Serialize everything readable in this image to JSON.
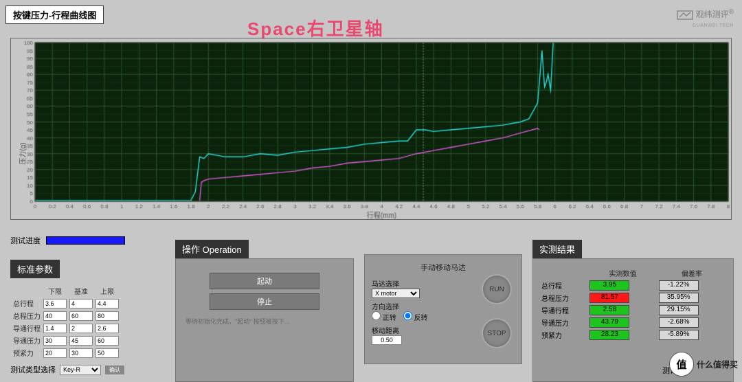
{
  "title_box": "按键压力-行程曲线图",
  "overlay_title": "Space右卫星轴",
  "logo": {
    "main": "观纬测评",
    "sub": "GUANWEI TECH"
  },
  "chart": {
    "type": "line",
    "ylabel": "压力(g)",
    "xlabel": "行程(mm)",
    "xlim": [
      0,
      8.0
    ],
    "xtick_step": 0.2,
    "ylim": [
      0,
      100
    ],
    "ytick_step": 5,
    "background_color": "#0b220b",
    "grid_color_major": "#2c5a2c",
    "grid_color_minor": "#153515",
    "axis_label_fontsize": 10,
    "tick_fontsize": 8,
    "series": [
      {
        "name": "press",
        "color": "#2be0e0",
        "line_width": 1.4,
        "points": [
          [
            0,
            0.5
          ],
          [
            0.2,
            0.5
          ],
          [
            0.4,
            0.5
          ],
          [
            0.6,
            0.5
          ],
          [
            0.8,
            0.5
          ],
          [
            1.0,
            0.5
          ],
          [
            1.2,
            0.5
          ],
          [
            1.4,
            0.5
          ],
          [
            1.6,
            0.5
          ],
          [
            1.8,
            0.6
          ],
          [
            1.85,
            6
          ],
          [
            1.9,
            28
          ],
          [
            1.95,
            27
          ],
          [
            2.0,
            30
          ],
          [
            2.2,
            28
          ],
          [
            2.4,
            28
          ],
          [
            2.6,
            30
          ],
          [
            2.8,
            29
          ],
          [
            3.0,
            31
          ],
          [
            3.2,
            32
          ],
          [
            3.4,
            33
          ],
          [
            3.6,
            34
          ],
          [
            3.8,
            36
          ],
          [
            4.0,
            37
          ],
          [
            4.2,
            38
          ],
          [
            4.3,
            38
          ],
          [
            4.4,
            45
          ],
          [
            4.5,
            45
          ],
          [
            4.6,
            44
          ],
          [
            4.8,
            45
          ],
          [
            5.0,
            46
          ],
          [
            5.2,
            47
          ],
          [
            5.4,
            48
          ],
          [
            5.5,
            49
          ],
          [
            5.6,
            50
          ],
          [
            5.7,
            52
          ],
          [
            5.8,
            62
          ],
          [
            5.82,
            75
          ],
          [
            5.85,
            95
          ],
          [
            5.88,
            72
          ],
          [
            5.9,
            75
          ],
          [
            5.92,
            80
          ],
          [
            5.95,
            70
          ],
          [
            5.98,
            100
          ]
        ]
      },
      {
        "name": "return",
        "color": "#e05be0",
        "line_width": 1.4,
        "points": [
          [
            1.9,
            0.5
          ],
          [
            1.92,
            12
          ],
          [
            1.95,
            13
          ],
          [
            2.0,
            14
          ],
          [
            2.2,
            15
          ],
          [
            2.4,
            16
          ],
          [
            2.6,
            17
          ],
          [
            2.8,
            18
          ],
          [
            3.0,
            19
          ],
          [
            3.2,
            21
          ],
          [
            3.4,
            22
          ],
          [
            3.6,
            24
          ],
          [
            3.8,
            25
          ],
          [
            4.0,
            26
          ],
          [
            4.2,
            27
          ],
          [
            4.4,
            30
          ],
          [
            4.6,
            32
          ],
          [
            4.8,
            34
          ],
          [
            5.0,
            36
          ],
          [
            5.2,
            38
          ],
          [
            5.4,
            40
          ],
          [
            5.6,
            43
          ],
          [
            5.8,
            46
          ],
          [
            5.82,
            45
          ]
        ]
      }
    ],
    "vertical_markers": [
      {
        "x": 4.48,
        "color": "#6aa06a"
      }
    ]
  },
  "progress_label": "测试进度",
  "std": {
    "header": "标准参数",
    "cols": [
      "下限",
      "基准",
      "上限"
    ],
    "rows": [
      {
        "label": "总行程",
        "vals": [
          "3.6",
          "4",
          "4.4"
        ]
      },
      {
        "label": "总程压力",
        "vals": [
          "40",
          "60",
          "80"
        ]
      },
      {
        "label": "导通行程",
        "vals": [
          "1.4",
          "2",
          "2.6"
        ]
      },
      {
        "label": "导通压力",
        "vals": [
          "30",
          "45",
          "60"
        ]
      },
      {
        "label": "预紧力",
        "vals": [
          "20",
          "30",
          "50"
        ]
      }
    ],
    "type_label": "测试类型选择",
    "type_value": "Key-R",
    "confirm": "确认"
  },
  "op": {
    "header": "操作 Operation",
    "start": "起动",
    "stop": "停止",
    "hint": "等待初始化完成，\"起动\" 按钮被按下..."
  },
  "motor": {
    "header": "手动移动马达",
    "sel_label": "马达选择",
    "sel_value": "X motor",
    "dir_label": "方向选择",
    "dir_fwd": "正转",
    "dir_rev": "反转",
    "selected": "rev",
    "dist_label": "移动距离",
    "dist_value": "0.50",
    "run": "RUN",
    "stop": "STOP"
  },
  "result": {
    "header": "实测结果",
    "cols": [
      "实测数值",
      "偏差率"
    ],
    "rows": [
      {
        "label": "总行程",
        "val": "3.95",
        "bg": "#1ec41e",
        "err": "-1.22%",
        "errbg": "#d8d8d8"
      },
      {
        "label": "总程压力",
        "val": "81.57",
        "bg": "#ff1818",
        "err": "35.95%",
        "errbg": "#d8d8d8"
      },
      {
        "label": "导通行程",
        "val": "2.58",
        "bg": "#1ec41e",
        "err": "29.15%",
        "errbg": "#d8d8d8"
      },
      {
        "label": "导通压力",
        "val": "43.79",
        "bg": "#1ec41e",
        "err": "-2.68%",
        "errbg": "#d8d8d8"
      },
      {
        "label": "预紧力",
        "val": "28.23",
        "bg": "#1ec41e",
        "err": "-5.89%",
        "errbg": "#d8d8d8"
      }
    ],
    "score_label": "测评分"
  },
  "watermark": {
    "circle": "值",
    "text": "什么值得买"
  }
}
